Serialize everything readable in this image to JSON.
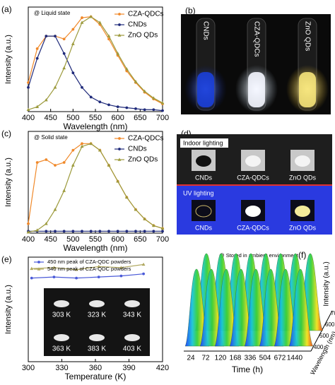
{
  "chart_data": [
    {
      "type": "line",
      "panel_label": "(a)",
      "annotation": "@ Liquid state",
      "xlabel": "Wavelength (nm)",
      "ylabel": "Intensity (a.u.)",
      "x": [
        400,
        420,
        440,
        460,
        480,
        500,
        520,
        540,
        560,
        580,
        600,
        620,
        640,
        660,
        680,
        700
      ],
      "xlim": [
        400,
        700
      ],
      "xticks": [
        400,
        450,
        500,
        550,
        600,
        650,
        700
      ],
      "ylim": [
        0,
        1.08
      ],
      "legend": "upper right",
      "series": [
        {
          "name": "CZA-QDCs",
          "color": "#f0892a",
          "marker": "circle",
          "values": [
            0.3,
            0.65,
            0.78,
            0.78,
            0.75,
            0.85,
            0.97,
            0.98,
            0.9,
            0.75,
            0.58,
            0.42,
            0.3,
            0.2,
            0.13,
            0.08
          ]
        },
        {
          "name": "CNDs",
          "color": "#1f2a7a",
          "marker": "circle",
          "values": [
            0.25,
            0.55,
            0.78,
            0.78,
            0.6,
            0.4,
            0.25,
            0.15,
            0.1,
            0.07,
            0.05,
            0.04,
            0.03,
            0.02,
            0.02,
            0.01
          ]
        },
        {
          "name": "ZnO QDs",
          "color": "#9c9a3c",
          "marker": "triangle",
          "values": [
            0.02,
            0.05,
            0.12,
            0.25,
            0.45,
            0.7,
            0.92,
            0.98,
            0.92,
            0.78,
            0.6,
            0.44,
            0.31,
            0.21,
            0.14,
            0.09
          ]
        }
      ]
    },
    {
      "type": "photo",
      "panel_label": "(b)",
      "labels": [
        "CNDs",
        "CZA-QDCs",
        "ZnO QDs"
      ]
    },
    {
      "type": "line",
      "panel_label": "(c)",
      "annotation": "@ Solid state",
      "xlabel": "Wavelength (nm)",
      "ylabel": "Intensity (a.u.)",
      "x": [
        400,
        420,
        440,
        460,
        480,
        500,
        520,
        540,
        560,
        580,
        600,
        620,
        640,
        660,
        680,
        700
      ],
      "xlim": [
        400,
        700
      ],
      "xticks": [
        400,
        450,
        500,
        550,
        600,
        650,
        700
      ],
      "ylim": [
        0,
        1.08
      ],
      "legend": "upper right",
      "series": [
        {
          "name": "CZA-QDCs",
          "color": "#f0892a",
          "marker": "circle",
          "values": [
            0.1,
            0.75,
            0.78,
            0.72,
            0.75,
            0.88,
            0.95,
            0.95,
            0.88,
            0.72,
            0.55,
            0.38,
            0.25,
            0.15,
            0.08,
            0.05
          ]
        },
        {
          "name": "CNDs",
          "color": "#1f2a7a",
          "marker": "circle",
          "values": [
            0.02,
            0.02,
            0.02,
            0.02,
            0.02,
            0.02,
            0.02,
            0.02,
            0.02,
            0.02,
            0.02,
            0.02,
            0.02,
            0.02,
            0.02,
            0.02
          ]
        },
        {
          "name": "ZnO QDs",
          "color": "#9c9a3c",
          "marker": "triangle",
          "values": [
            0.01,
            0.03,
            0.1,
            0.25,
            0.45,
            0.72,
            0.92,
            0.95,
            0.88,
            0.72,
            0.55,
            0.38,
            0.25,
            0.15,
            0.08,
            0.05
          ]
        }
      ]
    },
    {
      "type": "photo-grid",
      "panel_label": "(d)",
      "rows": [
        {
          "title": "Indoor lighting",
          "labels": [
            "CNDs",
            "CZA-QDCs",
            "ZnO QDs"
          ]
        },
        {
          "title": "UV lighting",
          "labels": [
            "CNDs",
            "CZA-QDCs",
            "ZnO QDs"
          ]
        }
      ]
    },
    {
      "type": "line",
      "panel_label": "(e)",
      "xlabel": "Temperature (K)",
      "ylabel": "Intensity (a.u.)",
      "x": [
        303,
        323,
        343,
        363,
        383,
        403
      ],
      "xlim": [
        300,
        420
      ],
      "xticks": [
        300,
        330,
        360,
        390,
        420
      ],
      "ylim": [
        0,
        1
      ],
      "legend": "upper left",
      "series": [
        {
          "name": "450 nm peak of CZA-QDC powders",
          "color": "#4a5ad8",
          "marker": "circle",
          "values": [
            0.8,
            0.81,
            0.8,
            0.81,
            0.82,
            0.84
          ]
        },
        {
          "name": "540 nm peak of CZA-QDC powders",
          "color": "#b0a860",
          "marker": "triangle",
          "values": [
            0.89,
            0.9,
            0.88,
            0.91,
            0.9,
            0.93
          ]
        }
      ],
      "inset_labels": [
        "303 K",
        "323 K",
        "343 K",
        "363 K",
        "383 K",
        "403 K"
      ]
    },
    {
      "type": "waterfall",
      "panel_label": "(f)",
      "annotation": "@ Stored in ambient environment",
      "xlabel": "Time (h)",
      "ylabel": "Intensity (a.u.)",
      "zlabel": "Wavelength (nm)",
      "categories": [
        24,
        72,
        120,
        168,
        336,
        504,
        672,
        1440
      ],
      "values": [
        1,
        1,
        1,
        1,
        1,
        1,
        1,
        1
      ],
      "ylim": [
        0,
        1.1
      ],
      "zticks": [
        400,
        500,
        600,
        700
      ]
    }
  ]
}
